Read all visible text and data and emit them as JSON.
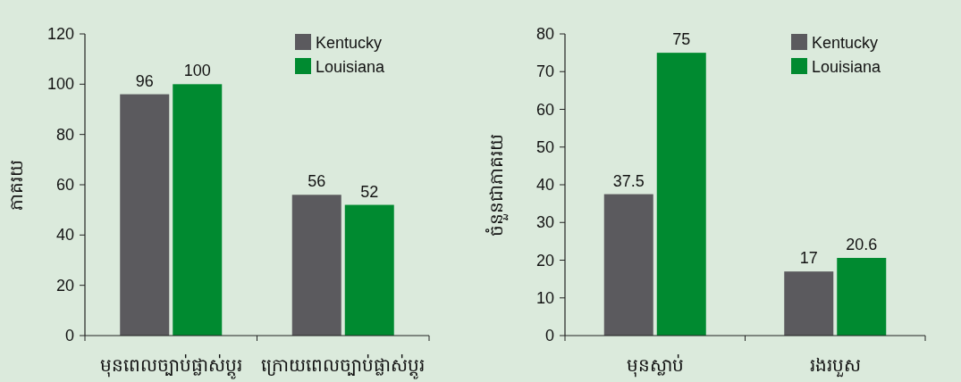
{
  "chart_data": [
    {
      "type": "bar",
      "ylabel": "ភាគរយ",
      "categories": [
        "មុនពេលច្បាប់ផ្លាស់ប្តូរ",
        "ក្រោយពេលច្បាប់ផ្លាស់ប្តូរ"
      ],
      "series": [
        {
          "name": "Kentucky",
          "color": "#5b5a5e",
          "values": [
            96,
            56
          ]
        },
        {
          "name": "Louisiana",
          "color": "#008a30",
          "values": [
            100,
            52
          ]
        }
      ],
      "ylim": [
        0,
        120
      ],
      "yticks": [
        0,
        20,
        40,
        60,
        80,
        100,
        120
      ],
      "data_labels": true,
      "legend": "top right",
      "grid": false
    },
    {
      "type": "bar",
      "ylabel": "ចំនួនជាភាគរយ",
      "categories": [
        "មុនស្លាប់",
        "រងរបួស"
      ],
      "series": [
        {
          "name": "Kentucky",
          "color": "#5b5a5e",
          "values": [
            37.5,
            17
          ]
        },
        {
          "name": "Louisiana",
          "color": "#008a30",
          "values": [
            75,
            20.6
          ]
        }
      ],
      "ylim": [
        0,
        80
      ],
      "yticks": [
        0,
        10,
        20,
        30,
        40,
        50,
        60,
        70,
        80
      ],
      "data_labels": true,
      "legend": "top right",
      "grid": false
    }
  ]
}
